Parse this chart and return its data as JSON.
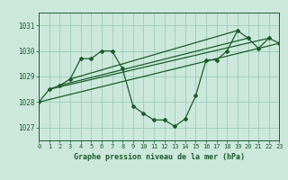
{
  "title": "Graphe pression niveau de la mer (hPa)",
  "bg_color": "#cce8dc",
  "grid_color": "#99ccbb",
  "line_color": "#1a5c2a",
  "x_min": 0,
  "x_max": 23,
  "y_min": 1026.5,
  "y_max": 1031.5,
  "yticks": [
    1027,
    1028,
    1029,
    1030,
    1031
  ],
  "xticks": [
    0,
    1,
    2,
    3,
    4,
    5,
    6,
    7,
    8,
    9,
    10,
    11,
    12,
    13,
    14,
    15,
    16,
    17,
    18,
    19,
    20,
    21,
    22,
    23
  ],
  "series1": [
    [
      0,
      1028.0
    ],
    [
      1,
      1028.5
    ],
    [
      2,
      1028.65
    ],
    [
      3,
      1028.9
    ],
    [
      4,
      1029.7
    ],
    [
      5,
      1029.7
    ],
    [
      6,
      1030.0
    ],
    [
      7,
      1030.0
    ],
    [
      8,
      1029.3
    ],
    [
      9,
      1027.85
    ],
    [
      10,
      1027.55
    ],
    [
      11,
      1027.3
    ],
    [
      12,
      1027.3
    ],
    [
      13,
      1027.05
    ],
    [
      14,
      1027.35
    ],
    [
      15,
      1028.25
    ],
    [
      16,
      1029.65
    ],
    [
      17,
      1029.65
    ],
    [
      18,
      1030.0
    ],
    [
      19,
      1030.8
    ],
    [
      20,
      1030.5
    ],
    [
      21,
      1030.1
    ],
    [
      22,
      1030.5
    ],
    [
      23,
      1030.3
    ]
  ],
  "trend_lines": [
    [
      [
        0,
        1028.0
      ],
      [
        23,
        1030.3
      ]
    ],
    [
      [
        1,
        1028.5
      ],
      [
        22,
        1030.5
      ]
    ],
    [
      [
        2,
        1028.65
      ],
      [
        20,
        1030.5
      ]
    ],
    [
      [
        3,
        1028.9
      ],
      [
        19,
        1030.8
      ]
    ]
  ]
}
